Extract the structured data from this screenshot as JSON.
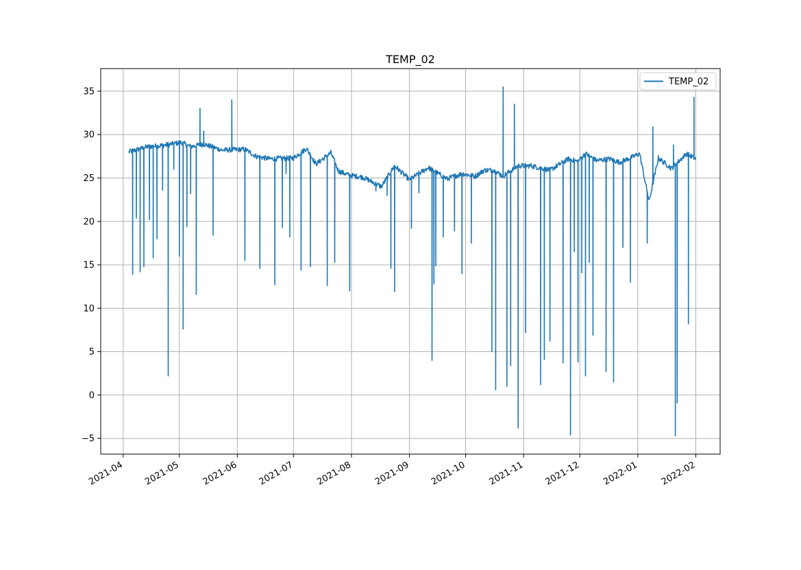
{
  "chart_data": {
    "type": "line",
    "title": "TEMP_02",
    "xlabel": "",
    "ylabel": "",
    "grid": true,
    "legend_position": "upper right",
    "x_start": "2021-04-04",
    "x_end": "2022-02-01",
    "xlim": [
      "2021-03-20",
      "2022-02-14"
    ],
    "ylim": [
      -6.8,
      37.6
    ],
    "x_tick_labels": [
      "2021-04",
      "2021-05",
      "2021-06",
      "2021-07",
      "2021-08",
      "2021-09",
      "2021-10",
      "2021-11",
      "2021-12",
      "2022-01",
      "2022-02"
    ],
    "x_tick_dates": [
      "2021-04-01",
      "2021-05-01",
      "2021-06-01",
      "2021-07-01",
      "2021-08-01",
      "2021-09-01",
      "2021-10-01",
      "2021-11-01",
      "2021-12-01",
      "2022-01-01",
      "2022-02-01"
    ],
    "y_ticks": [
      -5,
      0,
      5,
      10,
      15,
      20,
      25,
      30,
      35
    ],
    "y_tick_labels": [
      "−5",
      "0",
      "5",
      "10",
      "15",
      "20",
      "25",
      "30",
      "35"
    ],
    "series": [
      {
        "name": "TEMP_02",
        "color": "#1f77b4",
        "baseline": {
          "day_offsets": [
            0,
            10,
            20,
            28,
            33,
            40,
            50,
            62,
            68,
            75,
            88,
            95,
            100,
            108,
            112,
            118,
            125,
            135,
            142,
            150,
            160,
            170,
            178,
            185,
            190,
            195,
            200,
            208,
            215,
            225,
            235,
            240,
            244,
            250,
            257,
            262,
            268,
            273,
            278,
            283,
            290,
            298,
            303
          ],
          "values": [
            28.0,
            28.6,
            28.8,
            29.1,
            28.6,
            28.9,
            28.2,
            28.3,
            27.5,
            27.2,
            27.3,
            28.4,
            26.6,
            27.9,
            25.8,
            25.3,
            25.1,
            24.0,
            26.4,
            24.8,
            26.2,
            24.9,
            25.5,
            25.2,
            25.9,
            25.9,
            25.2,
            26.4,
            26.4,
            25.9,
            27.2,
            26.9,
            27.8,
            27.0,
            27.2,
            26.8,
            27.3,
            27.8,
            22.3,
            27.3,
            26.1,
            27.8,
            27.2
          ]
        },
        "spikes": {
          "day_offsets": [
            2,
            4,
            6,
            8,
            11,
            13,
            15,
            18,
            21,
            24,
            27,
            29,
            31,
            33,
            36,
            38,
            40,
            45,
            55,
            62,
            70,
            78,
            82,
            84,
            86,
            92,
            97,
            106,
            110,
            118,
            132,
            138,
            140,
            142,
            151,
            155,
            162,
            163,
            164,
            168,
            174,
            178,
            183,
            194,
            196,
            200,
            202,
            204,
            206,
            208,
            212,
            220,
            222,
            225,
            232,
            236,
            238,
            240,
            242,
            244,
            246,
            248,
            255,
            259,
            264,
            268,
            277,
            280,
            291,
            292,
            293,
            299,
            302
          ],
          "values": [
            13.9,
            20.4,
            14.2,
            14.8,
            20.2,
            15.8,
            18.0,
            23.6,
            2.2,
            26.0,
            16.0,
            7.6,
            19.4,
            23.2,
            11.6,
            33.0,
            30.4,
            18.4,
            34.0,
            15.5,
            14.6,
            12.7,
            19.3,
            25.5,
            18.2,
            14.4,
            14.8,
            12.6,
            15.3,
            12.0,
            23.5,
            23.0,
            14.6,
            11.9,
            19.2,
            23.3,
            4.0,
            12.8,
            14.9,
            18.2,
            18.9,
            14.0,
            17.5,
            5.0,
            0.6,
            35.5,
            1.0,
            3.4,
            33.5,
            -3.8,
            7.2,
            1.2,
            4.1,
            6.2,
            3.7,
            -4.6,
            16.5,
            3.8,
            14.1,
            2.2,
            15.3,
            6.9,
            2.7,
            1.5,
            17.0,
            13.0,
            17.5,
            30.9,
            28.8,
            -4.7,
            -0.9,
            8.2,
            34.3
          ]
        }
      }
    ]
  }
}
